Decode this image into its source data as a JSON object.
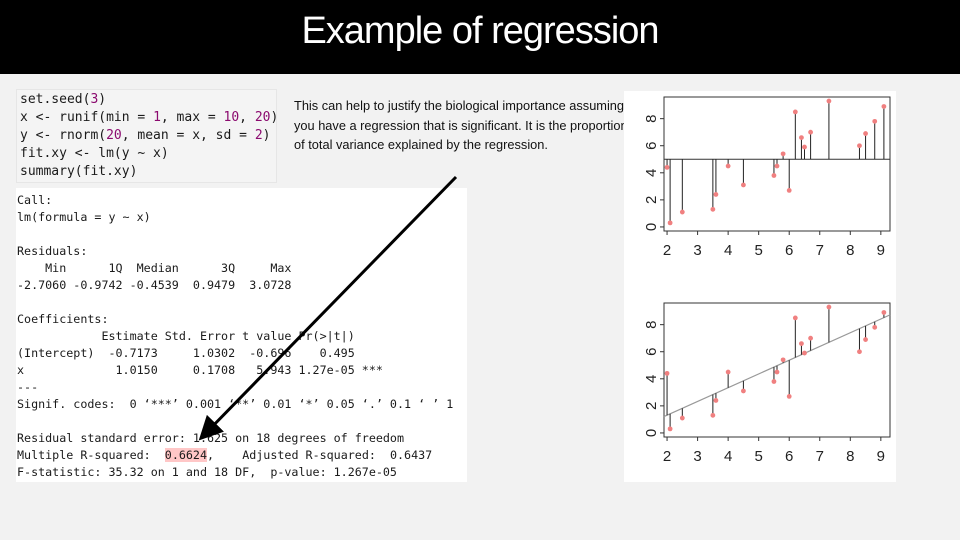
{
  "slide": {
    "title": "Example of regression",
    "description": "This can help to justify the biological importance assuming you have a regression that is significant. It is the proportion of total variance explained by the regression."
  },
  "code": {
    "lines": [
      [
        {
          "t": "set.seed("
        },
        {
          "t": "3",
          "n": true
        },
        {
          "t": ")"
        }
      ],
      [
        {
          "t": "x <- runif(min = "
        },
        {
          "t": "1",
          "n": true
        },
        {
          "t": ", max = "
        },
        {
          "t": "10",
          "n": true
        },
        {
          "t": ", "
        },
        {
          "t": "20",
          "n": true
        },
        {
          "t": ")"
        }
      ],
      [
        {
          "t": "y <- rnorm("
        },
        {
          "t": "20",
          "n": true
        },
        {
          "t": ", mean = x, sd = "
        },
        {
          "t": "2",
          "n": true
        },
        {
          "t": ")"
        }
      ],
      [
        {
          "t": "fit.xy <- lm(y ~ x)"
        }
      ],
      [
        {
          "t": "summary(fit.xy)"
        }
      ]
    ]
  },
  "output": {
    "lines": [
      "Call:",
      "lm(formula = y ~ x)",
      "",
      "Residuals:",
      "    Min      1Q  Median      3Q     Max ",
      "-2.7060 -0.9742 -0.4539  0.9479  3.0728 ",
      "",
      "Coefficients:",
      "            Estimate Std. Error t value Pr(>|t|)    ",
      "(Intercept)  -0.7173     1.0302  -0.696    0.495    ",
      "x             1.0150     0.1708   5.943 1.27e-05 ***",
      "---",
      "Signif. codes:  0 ‘***’ 0.001 ‘**’ 0.01 ‘*’ 0.05 ‘.’ 0.1 ‘ ’ 1",
      "",
      "Residual standard error: 1.625 on 18 degrees of freedom",
      "F-statistic: 35.32 on 1 and 18 DF,  p-value: 1.267e-05"
    ],
    "r2_prefix": "Multiple R-squared:  ",
    "r2_value": "0.6624",
    "r2_suffix": ",    Adjusted R-squared:  0.6437"
  },
  "plots": {
    "x_ticks": [
      "2",
      "3",
      "4",
      "5",
      "6",
      "7",
      "8",
      "9"
    ],
    "y_ticks": [
      "0",
      "2",
      "4",
      "6",
      "8"
    ],
    "colors": {
      "point": "#f08080",
      "line": "#222222",
      "fit": "#999999"
    },
    "mean_y": 5.0,
    "intercept": -0.7173,
    "slope": 1.015,
    "points": [
      [
        2.0,
        4.4
      ],
      [
        2.1,
        0.3
      ],
      [
        2.5,
        1.1
      ],
      [
        3.5,
        1.3
      ],
      [
        3.6,
        2.4
      ],
      [
        4.0,
        4.5
      ],
      [
        4.5,
        3.1
      ],
      [
        5.5,
        3.8
      ],
      [
        5.6,
        4.5
      ],
      [
        5.8,
        5.4
      ],
      [
        6.0,
        2.7
      ],
      [
        6.2,
        8.5
      ],
      [
        6.4,
        6.6
      ],
      [
        6.5,
        5.9
      ],
      [
        6.7,
        7.0
      ],
      [
        7.3,
        9.3
      ],
      [
        8.3,
        6.0
      ],
      [
        8.5,
        6.9
      ],
      [
        8.8,
        7.8
      ],
      [
        9.1,
        8.9
      ]
    ]
  }
}
